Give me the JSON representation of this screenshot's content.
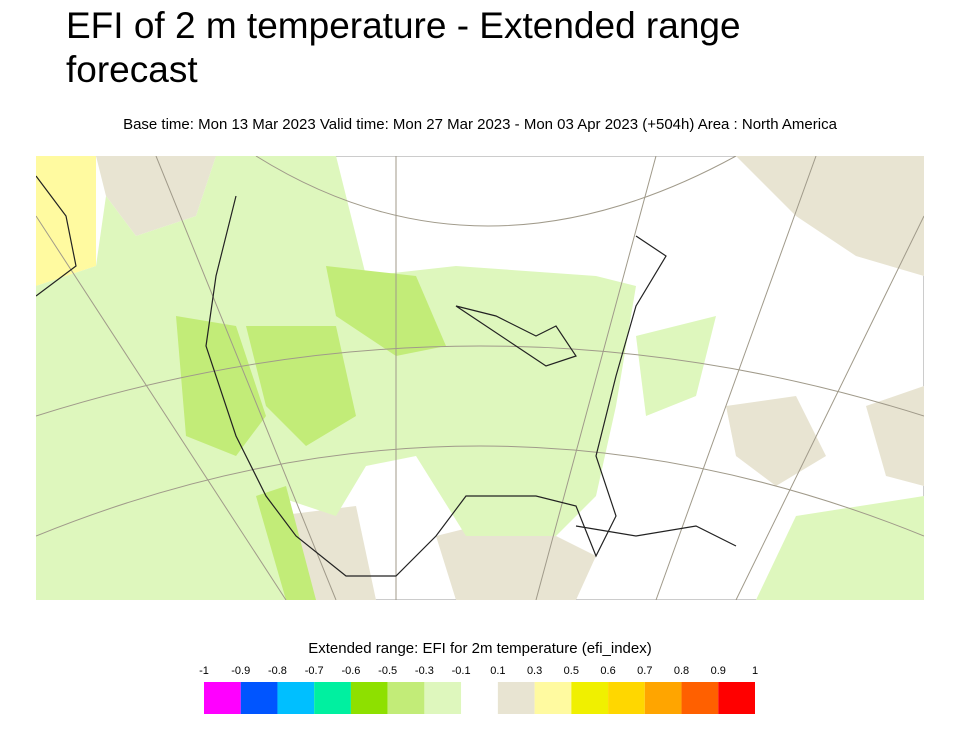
{
  "header": {
    "title": "EFI of 2 m temperature - Extended range forecast",
    "subtitle": "Base time: Mon 13 Mar 2023 Valid time: Mon 27 Mar 2023 - Mon 03 Apr 2023 (+504h) Area : North America"
  },
  "legend": {
    "title": "Extended range: EFI for 2m temperature (efi_index)",
    "ticks": [
      -1,
      -0.9,
      -0.8,
      -0.7,
      -0.6,
      -0.5,
      -0.3,
      -0.1,
      0.1,
      0.3,
      0.5,
      0.6,
      0.7,
      0.8,
      0.9,
      1
    ],
    "colors": [
      "#ff00ff",
      "#0055ff",
      "#00bfff",
      "#00f0a0",
      "#8ee000",
      "#c2ec78",
      "#def7bd",
      "#ffffff",
      "#e8e4d2",
      "#fffaa0",
      "#f0f000",
      "#ffd700",
      "#ffa500",
      "#ff6000",
      "#ff0000"
    ]
  }
}
